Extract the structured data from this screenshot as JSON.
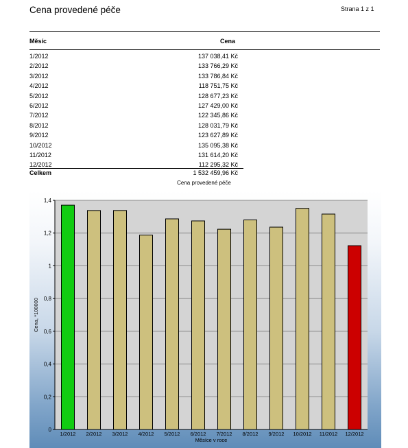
{
  "header": {
    "title": "Cena provedené péče",
    "page": "Strana 1 z 1"
  },
  "table": {
    "col_month": "Měsíc",
    "col_price": "Cena",
    "rows": [
      {
        "month": "1/2012",
        "price": "137 038,41 Kč"
      },
      {
        "month": "2/2012",
        "price": "133 766,29 Kč"
      },
      {
        "month": "3/2012",
        "price": "133 786,84 Kč"
      },
      {
        "month": "4/2012",
        "price": "118 751,75 Kč"
      },
      {
        "month": "5/2012",
        "price": "128 677,23 Kč"
      },
      {
        "month": "6/2012",
        "price": "127 429,00 Kč"
      },
      {
        "month": "7/2012",
        "price": "122 345,86 Kč"
      },
      {
        "month": "8/2012",
        "price": "128 031,79 Kč"
      },
      {
        "month": "9/2012",
        "price": "123 627,89 Kč"
      },
      {
        "month": "10/2012",
        "price": "135 095,38 Kč"
      },
      {
        "month": "11/2012",
        "price": "131 614,20 Kč"
      },
      {
        "month": "12/2012",
        "price": "112 295,32 Kč"
      }
    ],
    "total_label": "Celkem",
    "total_value": "1 532 459,96 Kč"
  },
  "chart_data": {
    "type": "bar",
    "title": "Cena provedené péče",
    "xlabel": "Měsíce v roce",
    "ylabel": "Cena, *100000",
    "categories": [
      "1/2012",
      "2/2012",
      "3/2012",
      "4/2012",
      "5/2012",
      "6/2012",
      "7/2012",
      "8/2012",
      "9/2012",
      "10/2012",
      "11/2012",
      "12/2012"
    ],
    "values": [
      1.3704,
      1.3377,
      1.3379,
      1.1875,
      1.2868,
      1.2743,
      1.2235,
      1.2803,
      1.2363,
      1.351,
      1.3161,
      1.123
    ],
    "ylim": [
      0,
      1.4
    ],
    "yticks": [
      "0",
      "0,2",
      "0,4",
      "0,6",
      "0,8",
      "1",
      "1,2",
      "1,4"
    ],
    "grid": true,
    "colors": {
      "default": "#cdc07e",
      "max": "#11cc11",
      "min": "#cc0000",
      "plot_bg": "#d4d4d4"
    }
  }
}
